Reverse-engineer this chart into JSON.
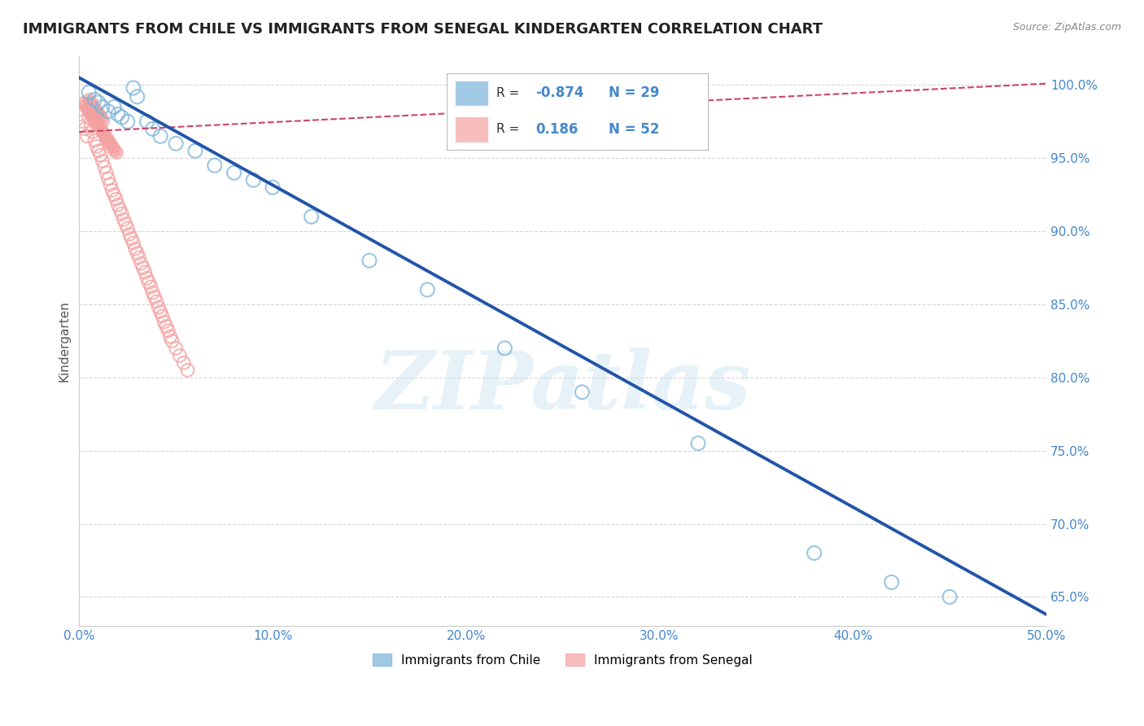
{
  "title": "IMMIGRANTS FROM CHILE VS IMMIGRANTS FROM SENEGAL KINDERGARTEN CORRELATION CHART",
  "source_text": "Source: ZipAtlas.com",
  "ylabel": "Kindergarten",
  "legend_label_blue": "Immigrants from Chile",
  "legend_label_pink": "Immigrants from Senegal",
  "R_blue": -0.874,
  "N_blue": 29,
  "R_pink": 0.186,
  "N_pink": 52,
  "xmin": 0.0,
  "xmax": 0.5,
  "ymin": 0.63,
  "ymax": 1.02,
  "blue_scatter_x": [
    0.005,
    0.008,
    0.01,
    0.012,
    0.015,
    0.018,
    0.02,
    0.022,
    0.025,
    0.028,
    0.03,
    0.035,
    0.038,
    0.042,
    0.05,
    0.06,
    0.07,
    0.08,
    0.09,
    0.1,
    0.12,
    0.15,
    0.18,
    0.22,
    0.26,
    0.32,
    0.38,
    0.42,
    0.45
  ],
  "blue_scatter_y": [
    0.995,
    0.99,
    0.988,
    0.985,
    0.982,
    0.985,
    0.98,
    0.978,
    0.975,
    0.998,
    0.992,
    0.975,
    0.97,
    0.965,
    0.96,
    0.955,
    0.945,
    0.94,
    0.935,
    0.93,
    0.91,
    0.88,
    0.86,
    0.82,
    0.79,
    0.755,
    0.68,
    0.66,
    0.65
  ],
  "pink_scatter_x": [
    0.001,
    0.002,
    0.003,
    0.004,
    0.005,
    0.006,
    0.007,
    0.008,
    0.009,
    0.01,
    0.011,
    0.012,
    0.013,
    0.014,
    0.015,
    0.016,
    0.017,
    0.018,
    0.019,
    0.02,
    0.021,
    0.022,
    0.023,
    0.024,
    0.025,
    0.026,
    0.027,
    0.028,
    0.029,
    0.03,
    0.031,
    0.032,
    0.033,
    0.034,
    0.035,
    0.036,
    0.037,
    0.038,
    0.039,
    0.04,
    0.041,
    0.042,
    0.043,
    0.044,
    0.045,
    0.046,
    0.047,
    0.048,
    0.05,
    0.052,
    0.054,
    0.056
  ],
  "pink_scatter_y": [
    0.98,
    0.975,
    0.97,
    0.965,
    0.978,
    0.972,
    0.968,
    0.962,
    0.958,
    0.955,
    0.952,
    0.948,
    0.944,
    0.94,
    0.936,
    0.932,
    0.928,
    0.925,
    0.922,
    0.918,
    0.915,
    0.912,
    0.908,
    0.905,
    0.902,
    0.898,
    0.895,
    0.892,
    0.888,
    0.885,
    0.882,
    0.878,
    0.875,
    0.872,
    0.868,
    0.865,
    0.862,
    0.858,
    0.855,
    0.852,
    0.848,
    0.845,
    0.842,
    0.838,
    0.835,
    0.832,
    0.828,
    0.825,
    0.82,
    0.815,
    0.81,
    0.805
  ],
  "pink_cluster_x": [
    0.002,
    0.003,
    0.004,
    0.005,
    0.006,
    0.007,
    0.008,
    0.009,
    0.01,
    0.011,
    0.012,
    0.013,
    0.014,
    0.015,
    0.016,
    0.017,
    0.018,
    0.019,
    0.005,
    0.006,
    0.007,
    0.008,
    0.009,
    0.01,
    0.011,
    0.012
  ],
  "pink_cluster_y": [
    0.988,
    0.986,
    0.984,
    0.982,
    0.98,
    0.978,
    0.976,
    0.974,
    0.972,
    0.97,
    0.968,
    0.966,
    0.964,
    0.962,
    0.96,
    0.958,
    0.956,
    0.954,
    0.99,
    0.988,
    0.986,
    0.984,
    0.982,
    0.98,
    0.978,
    0.976
  ],
  "blue_line_x": [
    0.0,
    0.5
  ],
  "blue_line_y": [
    1.005,
    0.638
  ],
  "pink_line_x": [
    0.0,
    0.5
  ],
  "pink_line_y": [
    0.968,
    1.001
  ],
  "watermark": "ZIPatlas",
  "grid_color": "#cccccc",
  "blue_color": "#7ab3d9",
  "pink_color": "#f4a0a0",
  "blue_line_color": "#2255aa",
  "pink_line_color": "#cc4466",
  "background_color": "#ffffff",
  "title_fontsize": 13,
  "axis_tick_color": "#4488cc",
  "yticks": [
    0.65,
    0.7,
    0.75,
    0.8,
    0.85,
    0.9,
    0.95,
    1.0
  ],
  "xticks": [
    0.0,
    0.1,
    0.2,
    0.3,
    0.4,
    0.5
  ]
}
